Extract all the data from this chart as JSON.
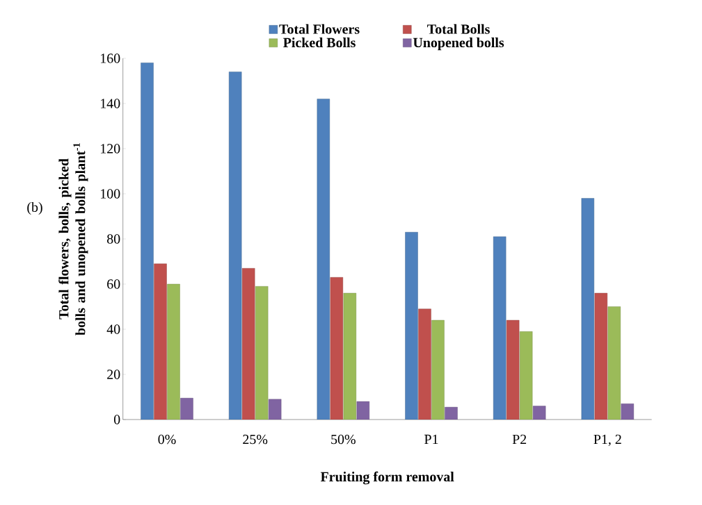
{
  "chart_data": {
    "type": "bar",
    "xlabel": "Fruiting form removal",
    "ylabel": "Total flowers, bolls, picked bolls and unopened bolls plant$^{-1}$",
    "categories": [
      "0%",
      "25%",
      "50%",
      "P1",
      "P2",
      "P1, 2"
    ],
    "series": [
      {
        "name": "Total Flowers",
        "color": "#4f81bd",
        "values": [
          158,
          154,
          142,
          83,
          81,
          98
        ]
      },
      {
        "name": "Total Bolls",
        "color": "#c0504d",
        "values": [
          69,
          67,
          63,
          49,
          44,
          56
        ]
      },
      {
        "name": "Picked Bolls",
        "color": "#9bbb59",
        "values": [
          60,
          59,
          56,
          44,
          39,
          50
        ]
      },
      {
        "name": "Unopened bolls",
        "color": "#8064a2",
        "values": [
          9.5,
          9,
          8,
          5.5,
          6,
          7
        ]
      }
    ],
    "ylim": [
      0,
      160
    ],
    "yticks": [
      0,
      20,
      40,
      60,
      80,
      100,
      120,
      140,
      160
    ],
    "grid": false,
    "legend": "top",
    "annotations": [
      "(b)"
    ]
  }
}
